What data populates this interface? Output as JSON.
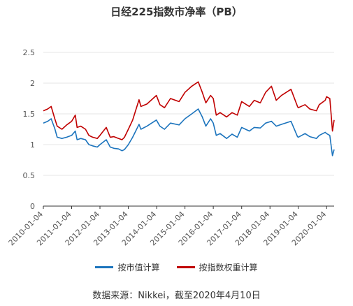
{
  "chart_data": {
    "type": "line",
    "title": "日经225指数市净率（PB）",
    "xlabel": "",
    "ylabel": "",
    "ylim": [
      0,
      2.5
    ],
    "yticks": [
      "0",
      "0.5",
      "1",
      "1.5",
      "2",
      "2.5"
    ],
    "xticks": [
      "2010-01-04",
      "2011-01-04",
      "2012-01-04",
      "2013-01-04",
      "2014-01-04",
      "2015-01-04",
      "2016-01-04",
      "2017-01-04",
      "2018-01-04",
      "2019-01-04",
      "2020-01-04"
    ],
    "x": [
      "2010-01-04",
      "2010-03-01",
      "2010-04-15",
      "2010-06-01",
      "2010-07-01",
      "2010-09-01",
      "2010-11-01",
      "2011-01-04",
      "2011-02-20",
      "2011-03-15",
      "2011-05-01",
      "2011-07-01",
      "2011-08-15",
      "2011-10-01",
      "2011-12-01",
      "2012-01-04",
      "2012-03-25",
      "2012-05-15",
      "2012-07-01",
      "2012-09-01",
      "2012-10-15",
      "2012-11-15",
      "2013-01-04",
      "2013-03-01",
      "2013-05-22",
      "2013-06-15",
      "2013-09-01",
      "2013-12-31",
      "2014-02-15",
      "2014-04-15",
      "2014-07-01",
      "2014-10-20",
      "2015-01-04",
      "2015-04-01",
      "2015-06-24",
      "2015-08-15",
      "2015-09-30",
      "2015-12-01",
      "2016-01-04",
      "2016-02-12",
      "2016-04-01",
      "2016-06-24",
      "2016-09-01",
      "2016-11-09",
      "2017-01-04",
      "2017-04-14",
      "2017-06-15",
      "2017-09-01",
      "2017-11-09",
      "2018-01-23",
      "2018-03-26",
      "2018-06-01",
      "2018-10-02",
      "2018-12-25",
      "2019-01-04",
      "2019-04-01",
      "2019-06-01",
      "2019-08-26",
      "2019-10-01",
      "2019-12-17",
      "2020-01-04",
      "2020-02-14",
      "2020-02-28",
      "2020-03-19",
      "2020-04-10"
    ],
    "series": [
      {
        "name": "按市值计算",
        "color": "#1c74bd",
        "values": [
          1.35,
          1.38,
          1.42,
          1.26,
          1.12,
          1.1,
          1.12,
          1.15,
          1.22,
          1.08,
          1.1,
          1.08,
          1.0,
          0.98,
          0.96,
          1.0,
          1.08,
          0.96,
          0.94,
          0.93,
          0.9,
          0.92,
          1.0,
          1.12,
          1.33,
          1.25,
          1.3,
          1.4,
          1.3,
          1.25,
          1.35,
          1.32,
          1.42,
          1.5,
          1.58,
          1.45,
          1.3,
          1.42,
          1.35,
          1.15,
          1.18,
          1.1,
          1.17,
          1.12,
          1.28,
          1.22,
          1.28,
          1.27,
          1.35,
          1.38,
          1.3,
          1.33,
          1.38,
          1.13,
          1.12,
          1.18,
          1.13,
          1.1,
          1.15,
          1.2,
          1.18,
          1.15,
          1.02,
          0.82,
          0.92
        ]
      },
      {
        "name": "按指数权重计算",
        "color": "#c00000",
        "values": [
          1.55,
          1.58,
          1.62,
          1.42,
          1.3,
          1.25,
          1.32,
          1.38,
          1.48,
          1.28,
          1.3,
          1.25,
          1.15,
          1.12,
          1.1,
          1.15,
          1.28,
          1.12,
          1.13,
          1.1,
          1.08,
          1.12,
          1.25,
          1.4,
          1.73,
          1.62,
          1.66,
          1.8,
          1.65,
          1.6,
          1.75,
          1.7,
          1.85,
          1.95,
          2.02,
          1.85,
          1.68,
          1.8,
          1.75,
          1.48,
          1.52,
          1.45,
          1.52,
          1.48,
          1.7,
          1.62,
          1.72,
          1.68,
          1.85,
          1.95,
          1.72,
          1.8,
          1.9,
          1.62,
          1.6,
          1.65,
          1.58,
          1.55,
          1.65,
          1.72,
          1.78,
          1.75,
          1.55,
          1.22,
          1.4
        ]
      }
    ],
    "legend_position": "bottom",
    "grid": "horizontal"
  },
  "source_note": "数据来源：Nikkei，截至2020年4月10日"
}
